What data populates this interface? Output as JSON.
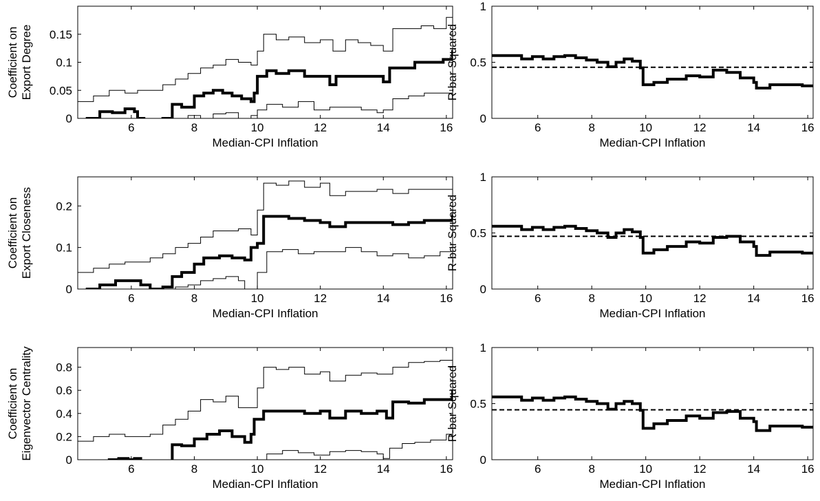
{
  "figure": {
    "panels": [
      {
        "id": "a"
      },
      {
        "id": "b"
      },
      {
        "id": "c"
      },
      {
        "id": "d"
      },
      {
        "id": "e"
      },
      {
        "id": "f"
      }
    ]
  },
  "chart_data": [
    {
      "type": "line",
      "title": "",
      "xlabel": "Median-CPI Inflation",
      "ylabel": [
        "Coefficient on",
        "Export Degree"
      ],
      "xlim": [
        4.3,
        16.2
      ],
      "ylim": [
        0,
        0.2
      ],
      "xticks": [
        6,
        8,
        10,
        12,
        14,
        16
      ],
      "yticks": [
        0,
        0.05,
        0.1,
        0.15
      ],
      "ytick_labels": [
        "0",
        "0.05",
        "0.1",
        "0.15"
      ],
      "series": [
        {
          "role": "estimate",
          "stroke_width": 4,
          "dash": "",
          "x": [
            4.3,
            4.6,
            5.0,
            5.4,
            5.8,
            6.1,
            6.2,
            6.4,
            6.6,
            7.0,
            7.3,
            7.6,
            8.0,
            8.3,
            8.6,
            8.9,
            9.2,
            9.5,
            9.8,
            9.9,
            10.0,
            10.3,
            10.6,
            11.0,
            11.5,
            12.0,
            12.3,
            12.5,
            13.0,
            13.5,
            14.0,
            14.2,
            14.6,
            15.0,
            15.5,
            15.9,
            16.2
          ],
          "y": [
            -0.01,
            0.0,
            0.012,
            0.01,
            0.017,
            0.012,
            0.0,
            -0.02,
            -0.01,
            0.0,
            0.025,
            0.02,
            0.04,
            0.045,
            0.05,
            0.045,
            0.04,
            0.035,
            0.03,
            0.045,
            0.075,
            0.085,
            0.08,
            0.085,
            0.075,
            0.075,
            0.06,
            0.075,
            0.075,
            0.075,
            0.065,
            0.09,
            0.09,
            0.1,
            0.1,
            0.105,
            0.122
          ]
        },
        {
          "role": "upper",
          "stroke_width": 1,
          "dash": "",
          "x": [
            4.3,
            4.8,
            5.3,
            5.8,
            6.2,
            6.6,
            7.0,
            7.4,
            7.8,
            8.2,
            8.6,
            9.0,
            9.4,
            9.8,
            10.0,
            10.2,
            10.6,
            11.0,
            11.5,
            12.0,
            12.4,
            12.8,
            13.2,
            13.6,
            14.0,
            14.3,
            14.8,
            15.2,
            15.6,
            16.0,
            16.2
          ],
          "y": [
            0.03,
            0.04,
            0.05,
            0.045,
            0.05,
            0.05,
            0.06,
            0.07,
            0.08,
            0.09,
            0.095,
            0.105,
            0.1,
            0.095,
            0.12,
            0.15,
            0.14,
            0.145,
            0.135,
            0.14,
            0.12,
            0.14,
            0.135,
            0.13,
            0.12,
            0.16,
            0.16,
            0.165,
            0.16,
            0.18,
            0.19
          ]
        },
        {
          "role": "lower",
          "stroke_width": 1,
          "dash": "",
          "x": [
            6.2,
            6.6,
            7.0,
            7.4,
            7.8,
            8.2,
            8.6,
            9.0,
            9.4,
            9.8,
            10.0,
            10.3,
            10.8,
            11.3,
            11.8,
            12.3,
            12.8,
            13.3,
            13.8,
            14.0,
            14.3,
            14.8,
            15.3,
            15.8,
            16.2
          ],
          "y": [
            -0.02,
            -0.02,
            -0.01,
            -0.005,
            0.005,
            0.0,
            0.008,
            0.01,
            0.0,
            0.005,
            0.015,
            0.025,
            0.02,
            0.03,
            0.015,
            0.02,
            0.02,
            0.015,
            0.01,
            0.015,
            0.035,
            0.04,
            0.045,
            0.045,
            0.058
          ]
        }
      ]
    },
    {
      "type": "line",
      "title": "",
      "xlabel": "Median-CPI Inflation",
      "ylabel": [
        "R-bar Squared"
      ],
      "xlim": [
        4.3,
        16.2
      ],
      "ylim": [
        0,
        1
      ],
      "xticks": [
        6,
        8,
        10,
        12,
        14,
        16
      ],
      "yticks": [
        0,
        0.5,
        1
      ],
      "ytick_labels": [
        "0",
        "0.5",
        "1"
      ],
      "series": [
        {
          "role": "r-bar-squared",
          "stroke_width": 4,
          "dash": "",
          "x": [
            4.3,
            4.8,
            5.4,
            5.8,
            6.2,
            6.6,
            7.0,
            7.4,
            7.8,
            8.2,
            8.6,
            8.9,
            9.2,
            9.5,
            9.8,
            9.9,
            10.3,
            10.8,
            11.5,
            12.0,
            12.5,
            13.0,
            13.5,
            14.0,
            14.1,
            14.6,
            15.2,
            15.8,
            16.2
          ],
          "y": [
            0.56,
            0.56,
            0.53,
            0.55,
            0.53,
            0.55,
            0.56,
            0.54,
            0.52,
            0.5,
            0.46,
            0.5,
            0.53,
            0.51,
            0.45,
            0.3,
            0.32,
            0.35,
            0.38,
            0.37,
            0.43,
            0.41,
            0.36,
            0.32,
            0.27,
            0.3,
            0.3,
            0.29,
            0.3
          ]
        },
        {
          "role": "reference",
          "stroke_width": 2,
          "dash": "7,4",
          "x": [
            4.3,
            16.2
          ],
          "y": [
            0.455,
            0.455
          ]
        }
      ]
    },
    {
      "type": "line",
      "title": "",
      "xlabel": "Median-CPI Inflation",
      "ylabel": [
        "Coefficient on",
        "Export Closeness"
      ],
      "xlim": [
        4.3,
        16.2
      ],
      "ylim": [
        0,
        0.27
      ],
      "xticks": [
        6,
        8,
        10,
        12,
        14,
        16
      ],
      "yticks": [
        0,
        0.1,
        0.2
      ],
      "ytick_labels": [
        "0",
        "0.1",
        "0.2"
      ],
      "series": [
        {
          "role": "estimate",
          "stroke_width": 4,
          "dash": "",
          "x": [
            4.3,
            4.6,
            5.0,
            5.5,
            6.0,
            6.3,
            6.6,
            7.0,
            7.3,
            7.6,
            8.0,
            8.3,
            8.8,
            9.2,
            9.6,
            9.8,
            10.0,
            10.2,
            10.6,
            11.0,
            11.5,
            12.0,
            12.3,
            12.8,
            13.3,
            13.8,
            14.3,
            14.8,
            15.3,
            15.8,
            16.2
          ],
          "y": [
            -0.01,
            0.0,
            0.01,
            0.02,
            0.02,
            0.01,
            0.0,
            0.005,
            0.03,
            0.04,
            0.06,
            0.075,
            0.08,
            0.075,
            0.07,
            0.1,
            0.11,
            0.175,
            0.175,
            0.17,
            0.165,
            0.16,
            0.15,
            0.16,
            0.16,
            0.16,
            0.155,
            0.16,
            0.165,
            0.165,
            0.18
          ]
        },
        {
          "role": "upper",
          "stroke_width": 1,
          "dash": "",
          "x": [
            4.3,
            4.8,
            5.3,
            5.8,
            6.2,
            6.6,
            7.0,
            7.4,
            7.8,
            8.2,
            8.6,
            9.0,
            9.4,
            9.8,
            10.0,
            10.2,
            10.6,
            11.0,
            11.5,
            12.0,
            12.3,
            12.8,
            13.3,
            13.8,
            14.3,
            14.8,
            15.3,
            15.8,
            16.2
          ],
          "y": [
            0.04,
            0.05,
            0.06,
            0.065,
            0.065,
            0.075,
            0.085,
            0.1,
            0.11,
            0.125,
            0.14,
            0.14,
            0.145,
            0.13,
            0.19,
            0.255,
            0.25,
            0.26,
            0.245,
            0.255,
            0.225,
            0.235,
            0.235,
            0.24,
            0.23,
            0.24,
            0.24,
            0.24,
            0.26
          ]
        },
        {
          "role": "lower",
          "stroke_width": 1,
          "dash": "",
          "x": [
            6.8,
            7.1,
            7.4,
            7.8,
            8.2,
            8.6,
            9.0,
            9.4,
            9.6,
            10.0,
            10.3,
            10.8,
            11.3,
            11.8,
            12.3,
            12.8,
            13.3,
            13.8,
            14.3,
            14.8,
            15.3,
            15.8,
            16.2
          ],
          "y": [
            -0.01,
            0.0,
            0.005,
            0.01,
            0.02,
            0.025,
            0.03,
            0.02,
            -0.005,
            0.04,
            0.09,
            0.095,
            0.085,
            0.09,
            0.09,
            0.1,
            0.09,
            0.08,
            0.085,
            0.075,
            0.08,
            0.09,
            0.1
          ]
        }
      ]
    },
    {
      "type": "line",
      "title": "",
      "xlabel": "Median-CPI Inflation",
      "ylabel": [
        "R-bar Squared"
      ],
      "xlim": [
        4.3,
        16.2
      ],
      "ylim": [
        0,
        1
      ],
      "xticks": [
        6,
        8,
        10,
        12,
        14,
        16
      ],
      "yticks": [
        0,
        0.5,
        1
      ],
      "ytick_labels": [
        "0",
        "0.5",
        "1"
      ],
      "series": [
        {
          "role": "r-bar-squared",
          "stroke_width": 4,
          "dash": "",
          "x": [
            4.3,
            4.8,
            5.4,
            5.8,
            6.2,
            6.6,
            7.0,
            7.4,
            7.8,
            8.2,
            8.6,
            8.9,
            9.2,
            9.5,
            9.8,
            9.9,
            10.3,
            10.8,
            11.5,
            12.0,
            12.5,
            13.0,
            13.5,
            14.0,
            14.1,
            14.6,
            15.2,
            15.8,
            16.2
          ],
          "y": [
            0.56,
            0.56,
            0.53,
            0.55,
            0.53,
            0.55,
            0.56,
            0.54,
            0.52,
            0.5,
            0.46,
            0.5,
            0.53,
            0.51,
            0.46,
            0.32,
            0.35,
            0.38,
            0.42,
            0.41,
            0.46,
            0.47,
            0.42,
            0.38,
            0.3,
            0.33,
            0.33,
            0.32,
            0.33
          ]
        },
        {
          "role": "reference",
          "stroke_width": 2,
          "dash": "7,4",
          "x": [
            4.3,
            16.2
          ],
          "y": [
            0.47,
            0.47
          ]
        }
      ]
    },
    {
      "type": "line",
      "title": "",
      "xlabel": "Median-CPI Inflation",
      "ylabel": [
        "Coefficient on",
        "Eigenvector Centrality"
      ],
      "xlim": [
        4.3,
        16.2
      ],
      "ylim": [
        0,
        0.97
      ],
      "xticks": [
        6,
        8,
        10,
        12,
        14,
        16
      ],
      "yticks": [
        0,
        0.2,
        0.4,
        0.6,
        0.8
      ],
      "ytick_labels": [
        "0",
        "0.2",
        "0.4",
        "0.6",
        "0.8"
      ],
      "series": [
        {
          "role": "estimate",
          "stroke_width": 4,
          "dash": "",
          "x": [
            4.3,
            4.9,
            5.3,
            5.6,
            5.9,
            6.1,
            6.3,
            7.2,
            7.3,
            7.6,
            8.0,
            8.4,
            8.8,
            9.2,
            9.6,
            9.8,
            9.9,
            10.2,
            10.6,
            11.0,
            11.5,
            12.0,
            12.3,
            12.8,
            13.3,
            13.8,
            14.1,
            14.3,
            14.8,
            15.3,
            15.8,
            16.2
          ],
          "y": [
            -0.08,
            -0.05,
            0.0,
            0.01,
            0.0,
            0.01,
            -0.02,
            -0.05,
            0.13,
            0.12,
            0.18,
            0.22,
            0.25,
            0.2,
            0.15,
            0.22,
            0.35,
            0.42,
            0.42,
            0.42,
            0.4,
            0.42,
            0.36,
            0.42,
            0.4,
            0.42,
            0.36,
            0.5,
            0.49,
            0.52,
            0.52,
            0.6
          ]
        },
        {
          "role": "upper",
          "stroke_width": 1,
          "dash": "",
          "x": [
            4.3,
            4.8,
            5.3,
            5.8,
            6.2,
            6.6,
            7.0,
            7.4,
            7.8,
            8.2,
            8.6,
            9.0,
            9.4,
            9.8,
            10.0,
            10.2,
            10.6,
            11.0,
            11.5,
            12.0,
            12.3,
            12.8,
            13.3,
            13.8,
            14.3,
            14.8,
            15.3,
            15.8,
            16.2
          ],
          "y": [
            0.16,
            0.2,
            0.22,
            0.2,
            0.2,
            0.22,
            0.3,
            0.35,
            0.42,
            0.52,
            0.5,
            0.55,
            0.45,
            0.45,
            0.62,
            0.8,
            0.78,
            0.8,
            0.74,
            0.76,
            0.68,
            0.73,
            0.75,
            0.74,
            0.8,
            0.84,
            0.85,
            0.86,
            0.97
          ]
        },
        {
          "role": "lower",
          "stroke_width": 1,
          "dash": "",
          "x": [
            9.6,
            10.0,
            10.3,
            10.8,
            11.3,
            11.8,
            12.3,
            12.8,
            13.3,
            13.8,
            14.0,
            14.2,
            14.6,
            15.0,
            15.5,
            16.0,
            16.2
          ],
          "y": [
            -0.02,
            0.0,
            0.05,
            0.08,
            0.06,
            0.04,
            0.07,
            0.08,
            0.07,
            0.05,
            0.01,
            0.1,
            0.14,
            0.15,
            0.17,
            0.22,
            0.26
          ]
        }
      ]
    },
    {
      "type": "line",
      "title": "",
      "xlabel": "Median-CPI Inflation",
      "ylabel": [
        "R-bar Squared"
      ],
      "xlim": [
        4.3,
        16.2
      ],
      "ylim": [
        0,
        1
      ],
      "xticks": [
        6,
        8,
        10,
        12,
        14,
        16
      ],
      "yticks": [
        0,
        0.5,
        1
      ],
      "ytick_labels": [
        "0",
        "0.5",
        "1"
      ],
      "series": [
        {
          "role": "r-bar-squared",
          "stroke_width": 4,
          "dash": "",
          "x": [
            4.3,
            4.8,
            5.4,
            5.8,
            6.2,
            6.6,
            7.0,
            7.4,
            7.8,
            8.2,
            8.6,
            8.9,
            9.2,
            9.5,
            9.8,
            9.9,
            10.3,
            10.8,
            11.5,
            12.0,
            12.5,
            13.0,
            13.5,
            14.0,
            14.1,
            14.6,
            15.2,
            15.8,
            16.2
          ],
          "y": [
            0.56,
            0.56,
            0.53,
            0.55,
            0.53,
            0.55,
            0.56,
            0.54,
            0.52,
            0.5,
            0.45,
            0.5,
            0.52,
            0.5,
            0.44,
            0.28,
            0.32,
            0.35,
            0.39,
            0.37,
            0.42,
            0.43,
            0.37,
            0.34,
            0.26,
            0.3,
            0.3,
            0.29,
            0.3
          ]
        },
        {
          "role": "reference",
          "stroke_width": 2,
          "dash": "7,4",
          "x": [
            4.3,
            16.2
          ],
          "y": [
            0.445,
            0.445
          ]
        }
      ]
    }
  ]
}
